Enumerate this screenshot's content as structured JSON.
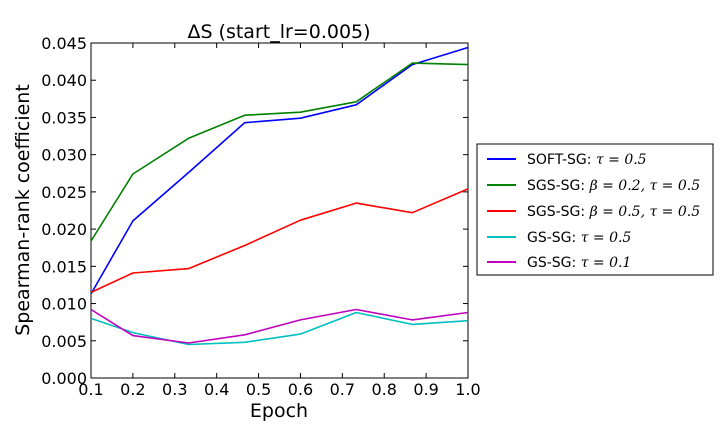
{
  "chart_data": {
    "type": "line",
    "title": "ΔS (start_lr=0.005)",
    "xlabel": "Epoch",
    "ylabel": "Spearman-rank coefficient",
    "xlim": [
      0.1,
      1.0
    ],
    "ylim": [
      0.0,
      0.045
    ],
    "x_ticks": [
      "0.1",
      "0.2",
      "0.3",
      "0.4",
      "0.5",
      "0.6",
      "0.7",
      "0.8",
      "0.9",
      "1.0"
    ],
    "y_ticks": [
      "0.000",
      "0.005",
      "0.010",
      "0.015",
      "0.020",
      "0.025",
      "0.030",
      "0.035",
      "0.040",
      "0.045"
    ],
    "x": [
      0.1,
      0.2,
      0.333,
      0.467,
      0.6,
      0.733,
      0.867,
      1.0
    ],
    "grid": false,
    "legend_position": "right, outside plot",
    "series": [
      {
        "name_prefix": "SOFT-SG: ",
        "name_math": "τ = 0.5",
        "color": "#0000ff",
        "values": [
          0.0113,
          0.0211,
          0.0276,
          0.0343,
          0.0349,
          0.0367,
          0.0421,
          0.0444
        ]
      },
      {
        "name_prefix": "SGS-SG: ",
        "name_math": "β = 0.2, τ = 0.5",
        "color": "#008000",
        "values": [
          0.0184,
          0.0274,
          0.0322,
          0.0353,
          0.0357,
          0.0371,
          0.0423,
          0.0421
        ]
      },
      {
        "name_prefix": "SGS-SG: ",
        "name_math": "β = 0.5, τ = 0.5",
        "color": "#ff0000",
        "values": [
          0.0115,
          0.0141,
          0.0147,
          0.0178,
          0.0212,
          0.0235,
          0.0222,
          0.0254
        ]
      },
      {
        "name_prefix": "GS-SG: ",
        "name_math": "τ = 0.5",
        "color": "#00bfbf",
        "values": [
          0.008,
          0.0061,
          0.0045,
          0.0048,
          0.0059,
          0.0088,
          0.0072,
          0.0077
        ]
      },
      {
        "name_prefix": "GS-SG: ",
        "name_math": "τ = 0.1",
        "color": "#bf00bf",
        "values": [
          0.0092,
          0.0057,
          0.0047,
          0.0058,
          0.0078,
          0.0092,
          0.0078,
          0.0088
        ]
      }
    ]
  }
}
